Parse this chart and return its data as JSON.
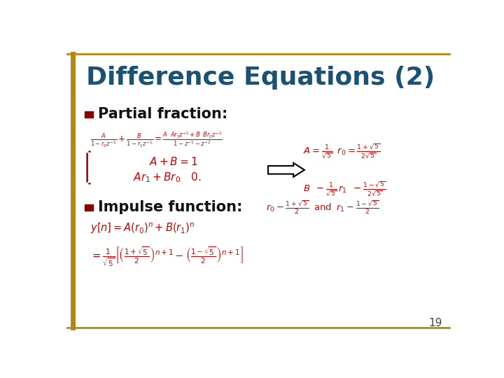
{
  "title": "Difference Equations (2)",
  "title_color": "#1a5276",
  "background_color": "#ffffff",
  "border_color": "#b8860b",
  "bullet_color": "#8b0000",
  "bullet1_text": "Partial fraction:",
  "bullet2_text": "Impulse function:",
  "math_color": "#cc0000",
  "page_number": "19"
}
